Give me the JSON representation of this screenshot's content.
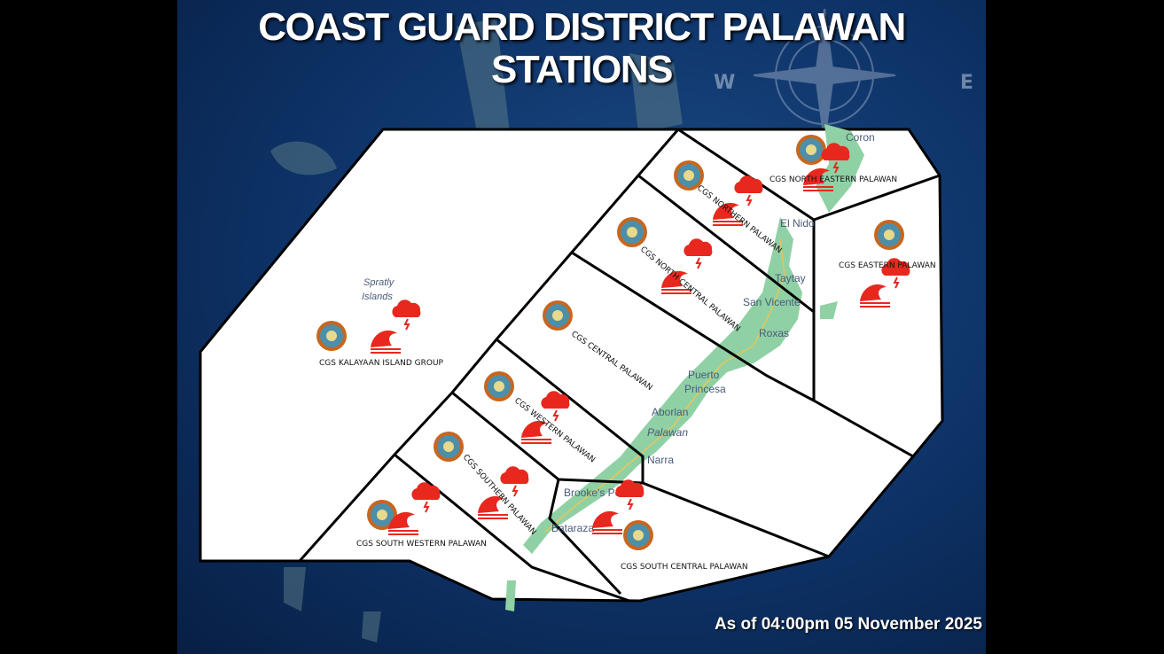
{
  "title_line1": "COAST GUARD DISTRICT PALAWAN",
  "title_line2": "STATIONS",
  "as_of": "As of 04:00pm 05 November 2025",
  "compass": {
    "west": "W",
    "east": "E"
  },
  "colors": {
    "sea": "#0d3266",
    "zone_fill": "#ffffff",
    "land": "#8fd1a4",
    "warning_red": "#e8281e"
  },
  "stations": [
    {
      "name": "CGS KALAYAAN  ISLAND GROUP",
      "icons": [
        "storm-cloud-icon",
        "wave-icon"
      ]
    },
    {
      "name": "CGS NORTHERN PALAWAN",
      "icons": [
        "storm-cloud-icon",
        "wave-icon"
      ]
    },
    {
      "name": "CGS NORTH EASTERN  PALAWAN",
      "icons": [
        "storm-cloud-icon",
        "wave-icon"
      ]
    },
    {
      "name": "CGS EASTERN PALAWAN",
      "icons": [
        "storm-cloud-icon",
        "wave-icon"
      ]
    },
    {
      "name": "CGS NORTH CENTRAL PALAWAN",
      "icons": [
        "storm-cloud-icon",
        "wave-icon"
      ]
    },
    {
      "name": "CGS CENTRAL  PALAWAN",
      "icons": [
        "storm-cloud-icon",
        "wave-icon"
      ]
    },
    {
      "name": "CGS WESTERN PALAWAN",
      "icons": [
        "storm-cloud-icon",
        "wave-icon"
      ]
    },
    {
      "name": "CGS SOUTHERN PALAWAN",
      "icons": [
        "storm-cloud-icon",
        "wave-icon"
      ]
    },
    {
      "name": "CGS SOUTH WESTERN  PALAWAN",
      "icons": [
        "storm-cloud-icon",
        "wave-icon"
      ]
    },
    {
      "name": "CGS SOUTH CENTRAL  PALAWAN",
      "icons": [
        "storm-cloud-icon",
        "wave-icon"
      ]
    }
  ],
  "places": [
    "Coron",
    "El Nido",
    "Taytay",
    "San Vicente",
    "Roxas",
    "Puerto",
    "Princesa",
    "Aborlan",
    "Palawan",
    "Narra",
    "Brooke's Point",
    "Bataraza",
    "Spratly",
    "Islands"
  ]
}
